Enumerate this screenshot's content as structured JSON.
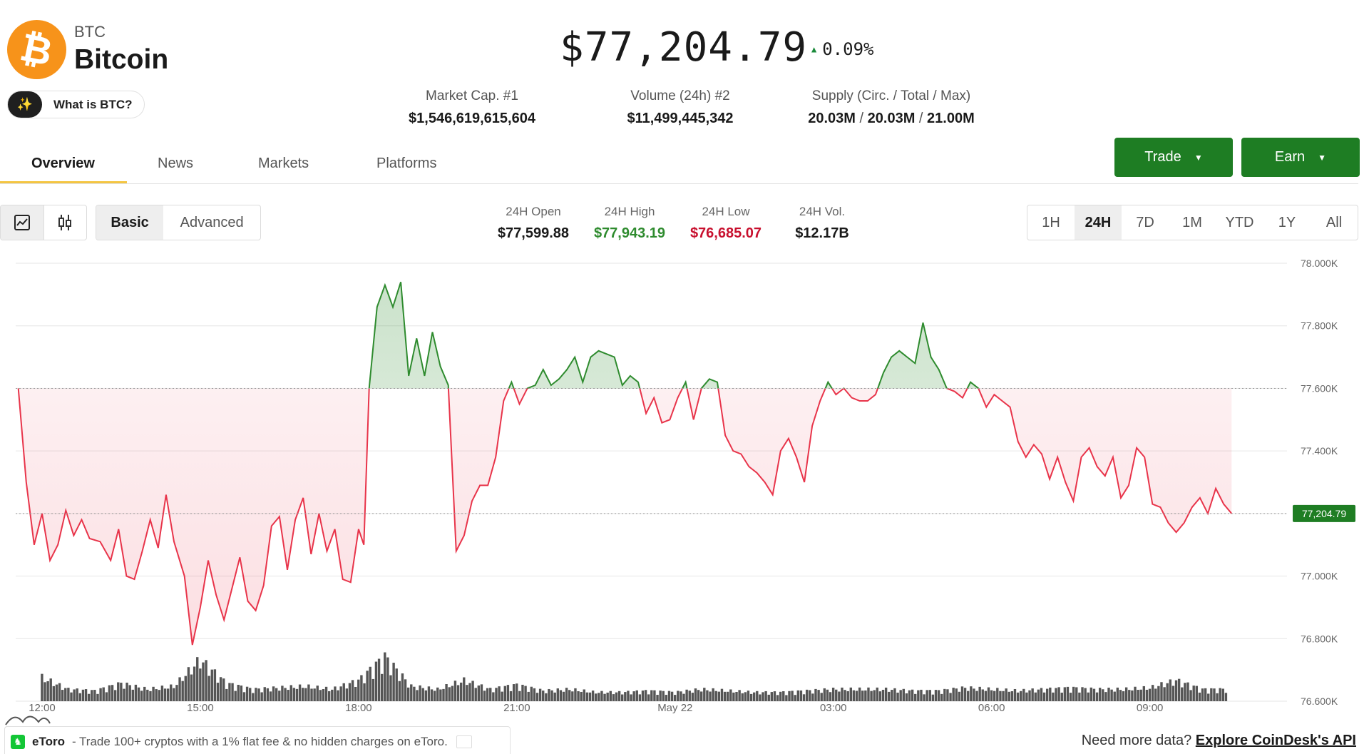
{
  "coin": {
    "ticker": "BTC",
    "name": "Bitcoin",
    "logo_icon": "bitcoin-icon",
    "logo_color": "#f7931a",
    "logo_glyph": "₿"
  },
  "what_is": {
    "label": "What is BTC?",
    "icon": "sparkle-icon"
  },
  "price": {
    "value": "$77,204.79",
    "change": "0.09%",
    "direction": "up"
  },
  "stats": [
    {
      "label": "Market Cap. #1",
      "value": "$1,546,619,615,604"
    },
    {
      "label": "Volume (24h) #2",
      "value": "$11,499,445,342"
    },
    {
      "label": "Supply (Circ. / Total / Max)",
      "values": [
        "20.03M",
        "20.03M",
        "21.00M"
      ]
    }
  ],
  "tabs": [
    {
      "label": "Overview",
      "active": true
    },
    {
      "label": "News"
    },
    {
      "label": "Markets"
    },
    {
      "label": "Platforms"
    }
  ],
  "actions": {
    "trade": "Trade",
    "earn": "Earn",
    "accent": "#1e7d23"
  },
  "chart_controls": {
    "chart_types": [
      "line-chart-icon",
      "candlestick-icon"
    ],
    "modes": [
      {
        "label": "Basic",
        "active": true
      },
      {
        "label": "Advanced"
      }
    ],
    "ranges": [
      {
        "label": "1H"
      },
      {
        "label": "24H",
        "active": true
      },
      {
        "label": "7D"
      },
      {
        "label": "1M"
      },
      {
        "label": "YTD"
      },
      {
        "label": "1Y"
      },
      {
        "label": "All"
      }
    ]
  },
  "ohlc": [
    {
      "label": "24H Open",
      "value": "$77,599.88",
      "tone": "neutral"
    },
    {
      "label": "24H High",
      "value": "$77,943.19",
      "tone": "green"
    },
    {
      "label": "24H Low",
      "value": "$76,685.07",
      "tone": "red"
    },
    {
      "label": "24H Vol.",
      "value": "$12.17B",
      "tone": "neutral"
    }
  ],
  "chart_data": {
    "type": "line",
    "baseline": 77599.88,
    "last_price_label": "77,204.79",
    "ylim": [
      76600,
      78000
    ],
    "y_ticks": [
      {
        "value": 78000,
        "label": "78.000K"
      },
      {
        "value": 77800,
        "label": "77.800K"
      },
      {
        "value": 77600,
        "label": "77.600K"
      },
      {
        "value": 77400,
        "label": "77.400K"
      },
      {
        "value": 77200,
        "label": "77.200K"
      },
      {
        "value": 77000,
        "label": "77.000K"
      },
      {
        "value": 76800,
        "label": "76.800K"
      },
      {
        "value": 76600,
        "label": "76.600K"
      }
    ],
    "xlim": [
      11.5,
      35.6
    ],
    "x_ticks": [
      {
        "value": 12,
        "label": "12:00"
      },
      {
        "value": 15,
        "label": "15:00"
      },
      {
        "value": 18,
        "label": "18:00"
      },
      {
        "value": 21,
        "label": "21:00"
      },
      {
        "value": 24,
        "label": "May 22"
      },
      {
        "value": 27,
        "label": "03:00"
      },
      {
        "value": 30,
        "label": "06:00"
      },
      {
        "value": 33,
        "label": "09:00"
      }
    ],
    "x_unit": "hours since May 21 00:00",
    "up_color": "#2e8b2e",
    "down_color": "#e8344a",
    "price": [
      [
        11.55,
        77600
      ],
      [
        11.7,
        77300
      ],
      [
        11.85,
        77100
      ],
      [
        12.0,
        77200
      ],
      [
        12.15,
        77050
      ],
      [
        12.3,
        77100
      ],
      [
        12.45,
        77210
      ],
      [
        12.6,
        77130
      ],
      [
        12.75,
        77180
      ],
      [
        12.9,
        77120
      ],
      [
        13.1,
        77110
      ],
      [
        13.3,
        77050
      ],
      [
        13.45,
        77150
      ],
      [
        13.6,
        77000
      ],
      [
        13.75,
        76990
      ],
      [
        13.9,
        77080
      ],
      [
        14.05,
        77180
      ],
      [
        14.2,
        77090
      ],
      [
        14.35,
        77260
      ],
      [
        14.5,
        77110
      ],
      [
        14.7,
        77000
      ],
      [
        14.85,
        76780
      ],
      [
        15.0,
        76900
      ],
      [
        15.15,
        77050
      ],
      [
        15.3,
        76940
      ],
      [
        15.45,
        76860
      ],
      [
        15.6,
        76960
      ],
      [
        15.75,
        77060
      ],
      [
        15.9,
        76920
      ],
      [
        16.05,
        76890
      ],
      [
        16.2,
        76970
      ],
      [
        16.35,
        77160
      ],
      [
        16.5,
        77190
      ],
      [
        16.65,
        77020
      ],
      [
        16.8,
        77180
      ],
      [
        16.95,
        77250
      ],
      [
        17.1,
        77070
      ],
      [
        17.25,
        77200
      ],
      [
        17.4,
        77080
      ],
      [
        17.55,
        77150
      ],
      [
        17.7,
        76990
      ],
      [
        17.85,
        76980
      ],
      [
        18.0,
        77150
      ],
      [
        18.1,
        77100
      ],
      [
        18.2,
        77600
      ],
      [
        18.35,
        77860
      ],
      [
        18.5,
        77930
      ],
      [
        18.65,
        77860
      ],
      [
        18.8,
        77940
      ],
      [
        18.95,
        77640
      ],
      [
        19.1,
        77760
      ],
      [
        19.25,
        77640
      ],
      [
        19.4,
        77780
      ],
      [
        19.55,
        77670
      ],
      [
        19.7,
        77610
      ],
      [
        19.85,
        77080
      ],
      [
        20.0,
        77130
      ],
      [
        20.15,
        77240
      ],
      [
        20.3,
        77290
      ],
      [
        20.45,
        77290
      ],
      [
        20.6,
        77380
      ],
      [
        20.75,
        77560
      ],
      [
        20.9,
        77620
      ],
      [
        21.05,
        77550
      ],
      [
        21.2,
        77600
      ],
      [
        21.35,
        77610
      ],
      [
        21.5,
        77660
      ],
      [
        21.65,
        77610
      ],
      [
        21.8,
        77630
      ],
      [
        21.95,
        77660
      ],
      [
        22.1,
        77700
      ],
      [
        22.25,
        77620
      ],
      [
        22.4,
        77700
      ],
      [
        22.55,
        77720
      ],
      [
        22.7,
        77710
      ],
      [
        22.85,
        77700
      ],
      [
        23.0,
        77610
      ],
      [
        23.15,
        77640
      ],
      [
        23.3,
        77620
      ],
      [
        23.45,
        77520
      ],
      [
        23.6,
        77570
      ],
      [
        23.75,
        77490
      ],
      [
        23.9,
        77500
      ],
      [
        24.05,
        77570
      ],
      [
        24.2,
        77620
      ],
      [
        24.35,
        77500
      ],
      [
        24.5,
        77600
      ],
      [
        24.65,
        77630
      ],
      [
        24.8,
        77620
      ],
      [
        24.95,
        77450
      ],
      [
        25.1,
        77400
      ],
      [
        25.25,
        77390
      ],
      [
        25.4,
        77350
      ],
      [
        25.55,
        77330
      ],
      [
        25.7,
        77300
      ],
      [
        25.85,
        77260
      ],
      [
        26.0,
        77400
      ],
      [
        26.15,
        77440
      ],
      [
        26.3,
        77380
      ],
      [
        26.45,
        77300
      ],
      [
        26.6,
        77480
      ],
      [
        26.75,
        77560
      ],
      [
        26.9,
        77620
      ],
      [
        27.05,
        77580
      ],
      [
        27.2,
        77600
      ],
      [
        27.35,
        77570
      ],
      [
        27.5,
        77560
      ],
      [
        27.65,
        77560
      ],
      [
        27.8,
        77580
      ],
      [
        27.95,
        77650
      ],
      [
        28.1,
        77700
      ],
      [
        28.25,
        77720
      ],
      [
        28.4,
        77700
      ],
      [
        28.55,
        77680
      ],
      [
        28.7,
        77810
      ],
      [
        28.85,
        77700
      ],
      [
        29.0,
        77660
      ],
      [
        29.15,
        77600
      ],
      [
        29.3,
        77590
      ],
      [
        29.45,
        77570
      ],
      [
        29.6,
        77620
      ],
      [
        29.75,
        77600
      ],
      [
        29.9,
        77540
      ],
      [
        30.05,
        77580
      ],
      [
        30.2,
        77560
      ],
      [
        30.35,
        77540
      ],
      [
        30.5,
        77430
      ],
      [
        30.65,
        77380
      ],
      [
        30.8,
        77420
      ],
      [
        30.95,
        77390
      ],
      [
        31.1,
        77310
      ],
      [
        31.25,
        77380
      ],
      [
        31.4,
        77300
      ],
      [
        31.55,
        77240
      ],
      [
        31.7,
        77380
      ],
      [
        31.85,
        77410
      ],
      [
        32.0,
        77350
      ],
      [
        32.15,
        77320
      ],
      [
        32.3,
        77380
      ],
      [
        32.45,
        77250
      ],
      [
        32.6,
        77290
      ],
      [
        32.75,
        77410
      ],
      [
        32.9,
        77380
      ],
      [
        33.05,
        77230
      ],
      [
        33.2,
        77220
      ],
      [
        33.35,
        77170
      ],
      [
        33.5,
        77140
      ],
      [
        33.65,
        77170
      ],
      [
        33.8,
        77220
      ],
      [
        33.95,
        77250
      ],
      [
        34.1,
        77200
      ],
      [
        34.25,
        77280
      ],
      [
        34.4,
        77230
      ],
      [
        34.55,
        77200
      ]
    ],
    "volume": [
      [
        12.0,
        80
      ],
      [
        12.5,
        40
      ],
      [
        13.0,
        35
      ],
      [
        13.5,
        60
      ],
      [
        14.0,
        40
      ],
      [
        14.5,
        50
      ],
      [
        15.0,
        140
      ],
      [
        15.5,
        60
      ],
      [
        16.0,
        40
      ],
      [
        16.5,
        45
      ],
      [
        17.0,
        50
      ],
      [
        17.5,
        40
      ],
      [
        18.0,
        70
      ],
      [
        18.5,
        150
      ],
      [
        19.0,
        50
      ],
      [
        19.5,
        40
      ],
      [
        20.0,
        70
      ],
      [
        20.5,
        40
      ],
      [
        21.0,
        55
      ],
      [
        21.5,
        35
      ],
      [
        22.0,
        40
      ],
      [
        22.5,
        30
      ],
      [
        23.0,
        30
      ],
      [
        23.5,
        35
      ],
      [
        24.0,
        30
      ],
      [
        24.5,
        40
      ],
      [
        25.0,
        35
      ],
      [
        25.5,
        30
      ],
      [
        26.0,
        30
      ],
      [
        26.5,
        35
      ],
      [
        27.0,
        40
      ],
      [
        27.5,
        40
      ],
      [
        28.0,
        40
      ],
      [
        28.5,
        35
      ],
      [
        29.0,
        35
      ],
      [
        29.5,
        45
      ],
      [
        30.0,
        40
      ],
      [
        30.5,
        35
      ],
      [
        31.0,
        40
      ],
      [
        31.5,
        45
      ],
      [
        32.0,
        40
      ],
      [
        32.5,
        40
      ],
      [
        33.0,
        45
      ],
      [
        33.5,
        70
      ],
      [
        34.0,
        40
      ],
      [
        34.5,
        40
      ]
    ]
  },
  "footer": {
    "etoro_brand": "eToro",
    "etoro_message": "- Trade 100+ cryptos with a 1% flat fee & no hidden charges on eToro.",
    "api_prefix": "Need more data?",
    "api_link": "Explore CoinDesk's API"
  }
}
